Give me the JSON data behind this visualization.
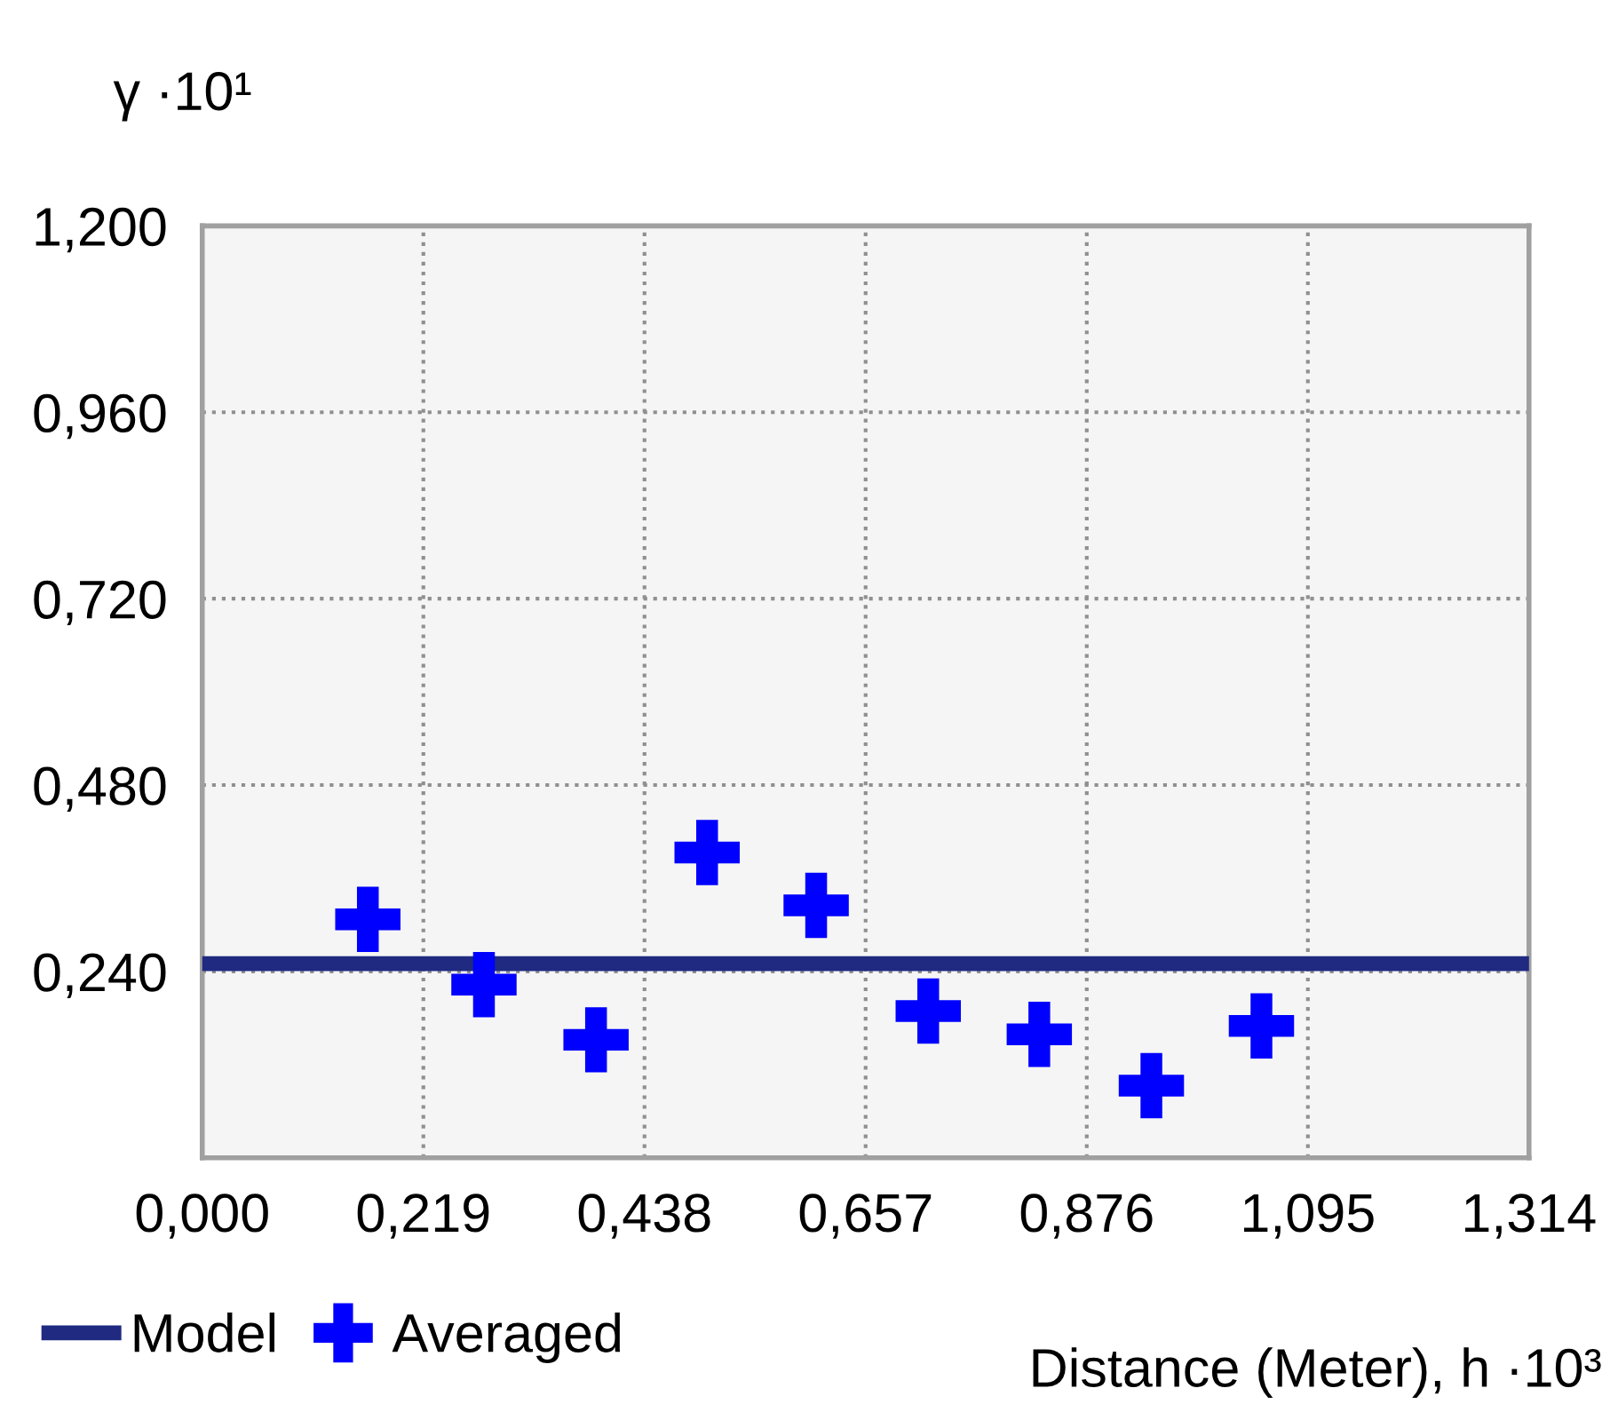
{
  "chart_data": {
    "type": "scatter",
    "ylabel": "γ ·10¹",
    "xlabel": "Distance (Meter), h ·10³",
    "xlim": [
      0,
      1.314
    ],
    "ylim": [
      0,
      1.2
    ],
    "xticks": [
      {
        "value": 0,
        "label": "0,000"
      },
      {
        "value": 0.219,
        "label": "0,219"
      },
      {
        "value": 0.438,
        "label": "0,438"
      },
      {
        "value": 0.657,
        "label": "0,657"
      },
      {
        "value": 0.876,
        "label": "0,876"
      },
      {
        "value": 1.095,
        "label": "1,095"
      },
      {
        "value": 1.314,
        "label": "1,314"
      }
    ],
    "yticks": [
      {
        "value": 0.24,
        "label": "0,240"
      },
      {
        "value": 0.48,
        "label": "0,480"
      },
      {
        "value": 0.72,
        "label": "0,720"
      },
      {
        "value": 0.96,
        "label": "0,960"
      },
      {
        "value": 1.2,
        "label": "1,200"
      }
    ],
    "grid": true,
    "legend": "bottom left",
    "series": [
      {
        "name": "Model",
        "type": "line",
        "color": "#1f2a80",
        "marker": "none",
        "x": [
          0,
          1.314
        ],
        "values": [
          0.25,
          0.25
        ]
      },
      {
        "name": "Averaged",
        "color": "#0000ff",
        "marker": "cross",
        "x": [
          0.164,
          0.279,
          0.39,
          0.5,
          0.608,
          0.719,
          0.829,
          0.94,
          1.049
        ],
        "values": [
          0.307,
          0.223,
          0.152,
          0.393,
          0.325,
          0.189,
          0.159,
          0.093,
          0.17
        ]
      }
    ]
  }
}
